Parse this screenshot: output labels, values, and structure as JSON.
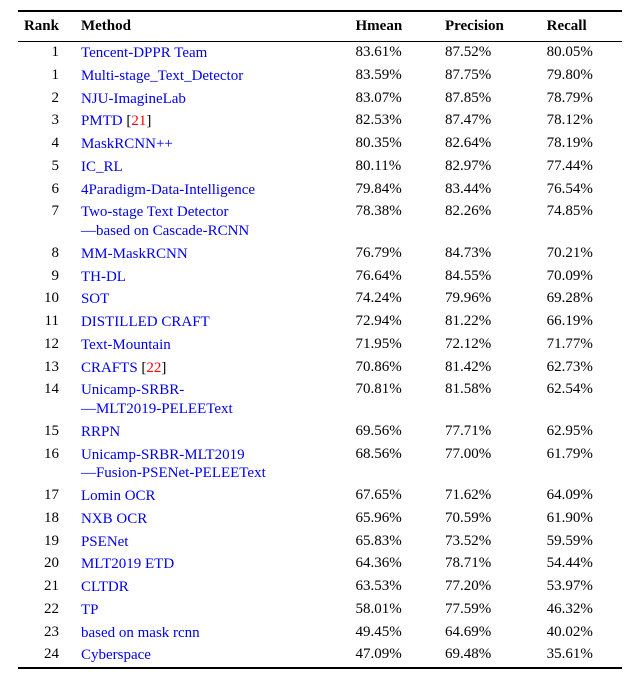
{
  "table": {
    "columns": [
      "Rank",
      "Method",
      "Hmean",
      "Precision",
      "Recall"
    ],
    "link_color": "#0000ee",
    "ref_color": "#ff0000",
    "text_color": "#000000",
    "background": "#ffffff",
    "border_color": "#000000",
    "font_family": "Times New Roman",
    "font_size_pt": 11,
    "rows": [
      {
        "rank": "1",
        "method": [
          {
            "t": "Tencent-DPPR Team",
            "link": true
          }
        ],
        "hmean": "83.61%",
        "precision": "87.52%",
        "recall": "80.05%"
      },
      {
        "rank": "1",
        "method": [
          {
            "t": "Multi-stage_Text_Detector",
            "link": true
          }
        ],
        "hmean": "83.59%",
        "precision": "87.75%",
        "recall": "79.80%"
      },
      {
        "rank": "2",
        "method": [
          {
            "t": "NJU-ImagineLab",
            "link": true
          }
        ],
        "hmean": "83.07%",
        "precision": "87.85%",
        "recall": "78.79%"
      },
      {
        "rank": "3",
        "method": [
          {
            "t": "PMTD",
            "link": true
          },
          {
            "t": " [",
            "link": false
          },
          {
            "t": "21",
            "ref": true
          },
          {
            "t": "]",
            "link": false
          }
        ],
        "hmean": "82.53%",
        "precision": "87.47%",
        "recall": "78.12%"
      },
      {
        "rank": "4",
        "method": [
          {
            "t": "MaskRCNN++",
            "link": true
          }
        ],
        "hmean": "80.35%",
        "precision": "82.64%",
        "recall": "78.19%"
      },
      {
        "rank": "5",
        "method": [
          {
            "t": "IC_RL",
            "link": true
          }
        ],
        "hmean": "80.11%",
        "precision": "82.97%",
        "recall": "77.44%"
      },
      {
        "rank": "6",
        "method": [
          {
            "t": "4Paradigm-Data-Intelligence",
            "link": true
          }
        ],
        "hmean": "79.84%",
        "precision": "83.44%",
        "recall": "76.54%"
      },
      {
        "rank": "7",
        "method": [
          {
            "t": "Two-stage Text Detector",
            "link": true
          }
        ],
        "method2": [
          {
            "t": "—based on Cascade-RCNN",
            "link": true
          }
        ],
        "hmean": "78.38%",
        "precision": "82.26%",
        "recall": "74.85%"
      },
      {
        "rank": "8",
        "method": [
          {
            "t": "MM-MaskRCNN",
            "link": true
          }
        ],
        "hmean": "76.79%",
        "precision": "84.73%",
        "recall": "70.21%"
      },
      {
        "rank": "9",
        "method": [
          {
            "t": "TH-DL",
            "link": true
          }
        ],
        "hmean": "76.64%",
        "precision": "84.55%",
        "recall": "70.09%"
      },
      {
        "rank": "10",
        "method": [
          {
            "t": "SOT",
            "link": true
          }
        ],
        "hmean": "74.24%",
        "precision": "79.96%",
        "recall": "69.28%"
      },
      {
        "rank": "11",
        "method": [
          {
            "t": "DISTILLED CRAFT",
            "link": true
          }
        ],
        "hmean": "72.94%",
        "precision": "81.22%",
        "recall": "66.19%"
      },
      {
        "rank": "12",
        "method": [
          {
            "t": "Text-Mountain",
            "link": true
          }
        ],
        "hmean": "71.95%",
        "precision": "72.12%",
        "recall": "71.77%"
      },
      {
        "rank": "13",
        "method": [
          {
            "t": "CRAFTS",
            "link": true
          },
          {
            "t": " [",
            "link": false
          },
          {
            "t": "22",
            "ref": true
          },
          {
            "t": "]",
            "link": false
          }
        ],
        "hmean": "70.86%",
        "precision": "81.42%",
        "recall": "62.73%"
      },
      {
        "rank": "14",
        "method": [
          {
            "t": "Unicamp-SRBR-",
            "link": true
          }
        ],
        "method2": [
          {
            "t": "—MLT2019-PELEEText",
            "link": true
          }
        ],
        "hmean": "70.81%",
        "precision": "81.58%",
        "recall": "62.54%"
      },
      {
        "rank": "15",
        "method": [
          {
            "t": "RRPN",
            "link": true
          }
        ],
        "hmean": "69.56%",
        "precision": "77.71%",
        "recall": "62.95%"
      },
      {
        "rank": "16",
        "method": [
          {
            "t": "Unicamp-SRBR-MLT2019",
            "link": true
          }
        ],
        "method2": [
          {
            "t": "—Fusion-PSENet-PELEEText",
            "link": true
          }
        ],
        "hmean": "68.56%",
        "precision": "77.00%",
        "recall": "61.79%"
      },
      {
        "rank": "17",
        "method": [
          {
            "t": "Lomin OCR",
            "link": true
          }
        ],
        "hmean": "67.65%",
        "precision": "71.62%",
        "recall": "64.09%"
      },
      {
        "rank": "18",
        "method": [
          {
            "t": "NXB OCR",
            "link": true
          }
        ],
        "hmean": "65.96%",
        "precision": "70.59%",
        "recall": "61.90%"
      },
      {
        "rank": "19",
        "method": [
          {
            "t": "PSENet",
            "link": true
          }
        ],
        "hmean": "65.83%",
        "precision": "73.52%",
        "recall": "59.59%"
      },
      {
        "rank": "20",
        "method": [
          {
            "t": "MLT2019 ETD",
            "link": true
          }
        ],
        "hmean": "64.36%",
        "precision": "78.71%",
        "recall": "54.44%"
      },
      {
        "rank": "21",
        "method": [
          {
            "t": "CLTDR",
            "link": true
          }
        ],
        "hmean": "63.53%",
        "precision": "77.20%",
        "recall": "53.97%"
      },
      {
        "rank": "22",
        "method": [
          {
            "t": "TP",
            "link": true
          }
        ],
        "hmean": "58.01%",
        "precision": "77.59%",
        "recall": "46.32%"
      },
      {
        "rank": "23",
        "method": [
          {
            "t": "based on mask rcnn",
            "link": true
          }
        ],
        "hmean": "49.45%",
        "precision": "64.69%",
        "recall": "40.02%"
      },
      {
        "rank": "24",
        "method": [
          {
            "t": "Cyberspace",
            "link": true
          }
        ],
        "hmean": "47.09%",
        "precision": "69.48%",
        "recall": "35.61%"
      }
    ]
  }
}
